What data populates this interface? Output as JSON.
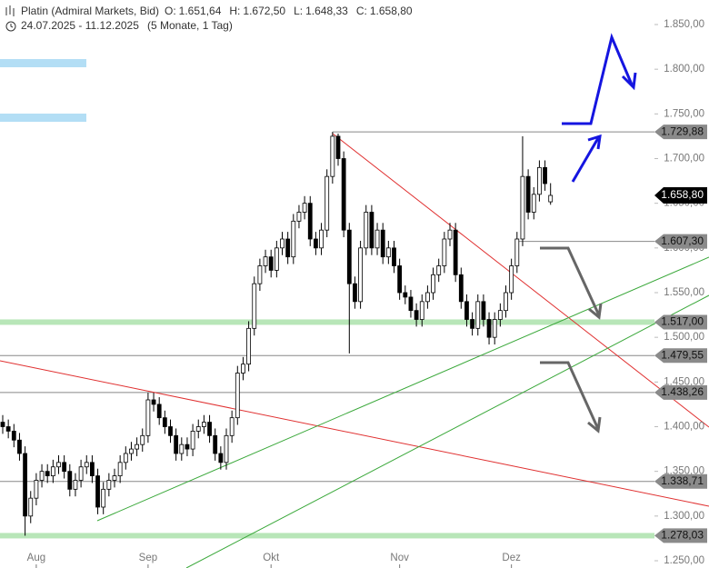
{
  "chart_data": {
    "type": "candlestick",
    "title": "Platin (Admiral Markets, Bid)",
    "ohlc_header": [
      {
        "name": "O:",
        "value": 1651.64,
        "label": "1.651,64"
      },
      {
        "name": "H:",
        "value": 1672.5,
        "label": "1.672,50"
      },
      {
        "name": "L:",
        "value": 1648.33,
        "label": "1.648,33"
      },
      {
        "name": "C:",
        "value": 1658.8,
        "label": "1.658,80"
      }
    ],
    "date_range": "24.07.2025 - 11.12.2025",
    "period": "(5 Monate, 1 Tag)",
    "categories": [
      null,
      null,
      null,
      null,
      null,
      null,
      "Aug",
      null,
      null,
      null,
      null,
      null,
      null,
      null,
      null,
      null,
      null,
      null,
      null,
      null,
      null,
      null,
      null,
      null,
      null,
      null,
      "Sep",
      null,
      null,
      null,
      null,
      null,
      null,
      null,
      null,
      null,
      null,
      null,
      null,
      null,
      null,
      null,
      null,
      null,
      null,
      null,
      null,
      null,
      "Okt",
      null,
      null,
      null,
      null,
      null,
      null,
      null,
      null,
      null,
      null,
      null,
      null,
      null,
      null,
      null,
      null,
      null,
      null,
      null,
      null,
      null,
      null,
      "Nov",
      null,
      null,
      null,
      null,
      null,
      null,
      null,
      null,
      null,
      null,
      null,
      null,
      null,
      null,
      null,
      null,
      null,
      null,
      null,
      "Dez",
      null,
      null,
      null,
      null,
      null,
      null,
      null
    ],
    "open": [
      1405,
      1400,
      1395,
      1385,
      1370,
      1300,
      1320,
      1340,
      1350,
      1345,
      1355,
      1360,
      1350,
      1330,
      1340,
      1355,
      1360,
      1345,
      1310,
      1330,
      1340,
      1345,
      1360,
      1370,
      1375,
      1380,
      1390,
      1430,
      1425,
      1410,
      1400,
      1390,
      1370,
      1380,
      1375,
      1395,
      1400,
      1405,
      1390,
      1370,
      1360,
      1390,
      1410,
      1460,
      1470,
      1510,
      1560,
      1580,
      1590,
      1575,
      1600,
      1610,
      1590,
      1630,
      1640,
      1650,
      1610,
      1600,
      1620,
      1680,
      1725,
      1700,
      1620,
      1560,
      1540,
      1600,
      1640,
      1600,
      1620,
      1590,
      1600,
      1580,
      1550,
      1545,
      1530,
      1520,
      1540,
      1550,
      1570,
      1580,
      1610,
      1620,
      1570,
      1540,
      1520,
      1510,
      1540,
      1520,
      1500,
      1520,
      1530,
      1550,
      1580,
      1610,
      1680,
      1640,
      1660,
      1690,
      1651.64
    ],
    "high": [
      1413,
      1408,
      1403,
      1393,
      1378,
      1328,
      1348,
      1358,
      1358,
      1363,
      1368,
      1368,
      1358,
      1348,
      1363,
      1368,
      1368,
      1353,
      1338,
      1348,
      1353,
      1368,
      1378,
      1383,
      1388,
      1398,
      1438,
      1438,
      1433,
      1418,
      1408,
      1398,
      1388,
      1388,
      1403,
      1408,
      1413,
      1413,
      1398,
      1378,
      1398,
      1418,
      1468,
      1478,
      1518,
      1568,
      1588,
      1598,
      1598,
      1608,
      1618,
      1618,
      1638,
      1648,
      1658,
      1658,
      1618,
      1628,
      1688,
      1729.88,
      1728,
      1708,
      1628,
      1568,
      1608,
      1648,
      1648,
      1628,
      1628,
      1608,
      1608,
      1588,
      1558,
      1553,
      1538,
      1548,
      1558,
      1578,
      1588,
      1618,
      1628,
      1628,
      1578,
      1548,
      1528,
      1548,
      1548,
      1528,
      1528,
      1538,
      1558,
      1588,
      1618,
      1725,
      1688,
      1668,
      1698,
      1698,
      1672.5
    ],
    "low": [
      1392,
      1387,
      1377,
      1362,
      1278,
      1292,
      1312,
      1332,
      1337,
      1337,
      1347,
      1342,
      1322,
      1322,
      1332,
      1347,
      1337,
      1302,
      1302,
      1322,
      1332,
      1337,
      1352,
      1362,
      1367,
      1372,
      1382,
      1417,
      1402,
      1392,
      1382,
      1362,
      1362,
      1367,
      1367,
      1387,
      1392,
      1382,
      1362,
      1352,
      1352,
      1382,
      1402,
      1452,
      1462,
      1502,
      1552,
      1572,
      1567,
      1567,
      1592,
      1582,
      1582,
      1622,
      1632,
      1602,
      1592,
      1592,
      1612,
      1672,
      1692,
      1612,
      1482,
      1532,
      1532,
      1592,
      1592,
      1592,
      1582,
      1582,
      1572,
      1542,
      1537,
      1522,
      1512,
      1512,
      1532,
      1542,
      1562,
      1572,
      1602,
      1562,
      1532,
      1512,
      1502,
      1502,
      1512,
      1492,
      1492,
      1512,
      1522,
      1542,
      1572,
      1602,
      1632,
      1632,
      1652,
      1664,
      1648.33
    ],
    "close": [
      1400,
      1395,
      1385,
      1370,
      1300,
      1320,
      1340,
      1350,
      1345,
      1355,
      1360,
      1350,
      1330,
      1340,
      1355,
      1360,
      1345,
      1310,
      1330,
      1340,
      1345,
      1360,
      1370,
      1375,
      1380,
      1390,
      1430,
      1425,
      1410,
      1400,
      1390,
      1370,
      1380,
      1375,
      1395,
      1400,
      1405,
      1390,
      1370,
      1360,
      1390,
      1410,
      1460,
      1470,
      1510,
      1560,
      1580,
      1590,
      1575,
      1600,
      1610,
      1590,
      1630,
      1640,
      1650,
      1610,
      1600,
      1620,
      1680,
      1725,
      1700,
      1620,
      1560,
      1540,
      1600,
      1640,
      1600,
      1620,
      1590,
      1600,
      1580,
      1550,
      1545,
      1530,
      1520,
      1540,
      1550,
      1570,
      1580,
      1610,
      1620,
      1570,
      1540,
      1520,
      1510,
      1540,
      1520,
      1500,
      1520,
      1530,
      1550,
      1580,
      1610,
      1680,
      1640,
      1660,
      1690,
      1672,
      1658.8
    ],
    "up_color": "#ffffff",
    "down_color": "#000000",
    "ylim": [
      1250,
      1850
    ],
    "yticks": [
      {
        "value": 1250,
        "label": "1.250,00"
      },
      {
        "value": 1300,
        "label": "1.300,00"
      },
      {
        "value": 1350,
        "label": "1.350,00"
      },
      {
        "value": 1400,
        "label": "1.400,00"
      },
      {
        "value": 1450,
        "label": "1.450,00"
      },
      {
        "value": 1500,
        "label": "1.500,00"
      },
      {
        "value": 1550,
        "label": "1.550,00"
      },
      {
        "value": 1600,
        "label": "1.600,00"
      },
      {
        "value": 1650,
        "label": "1.650,00"
      },
      {
        "value": 1700,
        "label": "1.700,00"
      },
      {
        "value": 1750,
        "label": "1.750,00"
      },
      {
        "value": 1800,
        "label": "1.800,00"
      },
      {
        "value": 1850,
        "label": "1.850,00"
      }
    ],
    "levels": [
      {
        "value": 1729.88,
        "label": "1.729,88",
        "color": "#888888"
      },
      {
        "value": 1607.3,
        "label": "1.607,30",
        "color": "#888888"
      },
      {
        "value": 1517,
        "label": "1.517,00",
        "color": "#b8e6b8"
      },
      {
        "value": 1479.55,
        "label": "1.479,55",
        "color": "#888888"
      },
      {
        "value": 1438.26,
        "label": "1.438,26",
        "color": "#888888"
      },
      {
        "value": 1338.71,
        "label": "1.338,71",
        "color": "#888888"
      },
      {
        "value": 1278.03,
        "label": "1.278,03",
        "color": "#b8e6b8"
      }
    ],
    "current_price": {
      "value": 1658.8,
      "label": "1.658,80"
    }
  }
}
